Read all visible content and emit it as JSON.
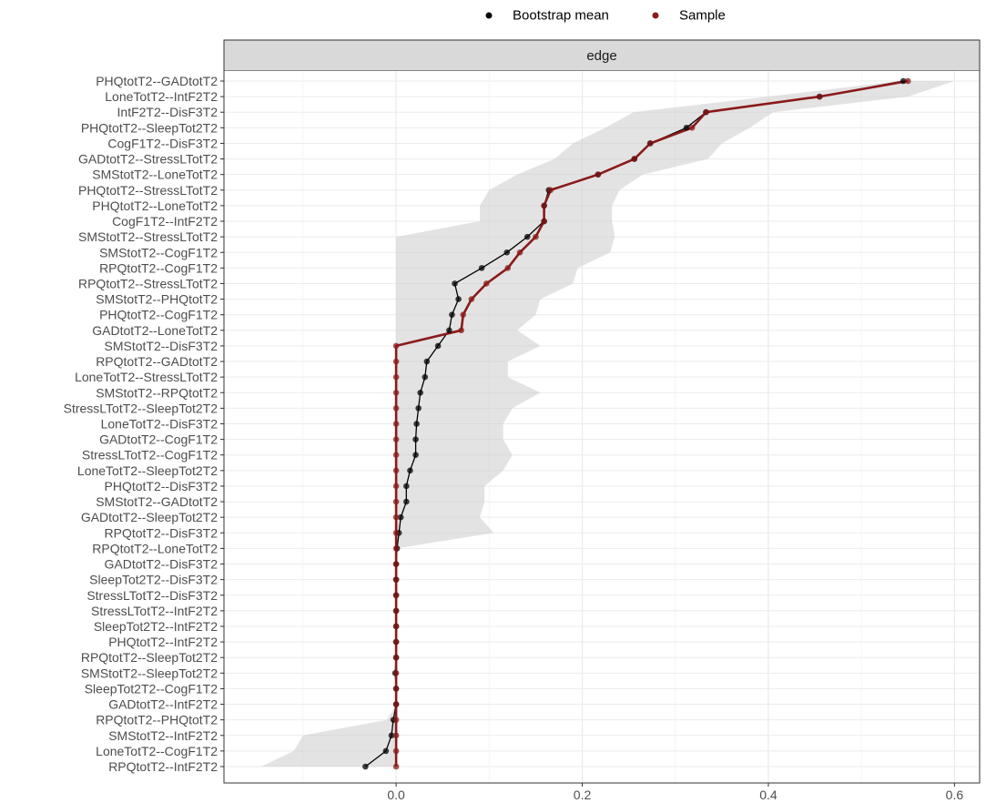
{
  "chart_data": {
    "type": "line",
    "orientation": "horizontal",
    "facet_label": "edge",
    "legend": {
      "placement": "top",
      "entries": [
        {
          "name": "Bootstrap mean",
          "color": "#000000"
        },
        {
          "name": "Sample",
          "color": "#8b1a1a"
        }
      ]
    },
    "categories": [
      "PHQtotT2--GADtotT2",
      "LoneTotT2--IntF2T2",
      "IntF2T2--DisF3T2",
      "PHQtotT2--SleepTot2T2",
      "CogF1T2--DisF3T2",
      "GADtotT2--StressLTotT2",
      "SMStotT2--LoneTotT2",
      "PHQtotT2--StressLTotT2",
      "PHQtotT2--LoneTotT2",
      "CogF1T2--IntF2T2",
      "SMStotT2--StressLTotT2",
      "SMStotT2--CogF1T2",
      "RPQtotT2--CogF1T2",
      "RPQtotT2--StressLTotT2",
      "SMStotT2--PHQtotT2",
      "PHQtotT2--CogF1T2",
      "GADtotT2--LoneTotT2",
      "SMStotT2--DisF3T2",
      "RPQtotT2--GADtotT2",
      "LoneTotT2--StressLTotT2",
      "SMStotT2--RPQtotT2",
      "StressLTotT2--SleepTot2T2",
      "LoneTotT2--DisF3T2",
      "GADtotT2--CogF1T2",
      "StressLTotT2--CogF1T2",
      "LoneTotT2--SleepTot2T2",
      "PHQtotT2--DisF3T2",
      "SMStotT2--GADtotT2",
      "GADtotT2--SleepTot2T2",
      "RPQtotT2--DisF3T2",
      "RPQtotT2--LoneTotT2",
      "GADtotT2--DisF3T2",
      "SleepTot2T2--DisF3T2",
      "StressLTotT2--DisF3T2",
      "StressLTotT2--IntF2T2",
      "SleepTot2T2--IntF2T2",
      "PHQtotT2--IntF2T2",
      "RPQtotT2--SleepTot2T2",
      "SMStotT2--SleepTot2T2",
      "SleepTot2T2--CogF1T2",
      "GADtotT2--IntF2T2",
      "RPQtotT2--PHQtotT2",
      "SMStotT2--IntF2T2",
      "LoneTotT2--CogF1T2",
      "RPQtotT2--IntF2T2"
    ],
    "series": [
      {
        "name": "Bootstrap mean",
        "color": "#000000",
        "values": [
          0.545,
          0.455,
          0.333,
          0.312,
          0.273,
          0.256,
          0.217,
          0.164,
          0.159,
          0.159,
          0.141,
          0.119,
          0.092,
          0.063,
          0.067,
          0.06,
          0.057,
          0.045,
          0.033,
          0.031,
          0.026,
          0.024,
          0.022,
          0.021,
          0.021,
          0.015,
          0.011,
          0.011,
          0.005,
          0.003,
          0.001,
          0.0,
          0.0,
          0.0,
          0.0,
          0.0,
          0.0,
          0.0,
          -0.001,
          0.0,
          0.0,
          -0.003,
          -0.005,
          -0.011,
          -0.033
        ]
      },
      {
        "name": "Sample",
        "color": "#8b1a1a",
        "values": [
          0.55,
          0.455,
          0.333,
          0.318,
          0.273,
          0.256,
          0.217,
          0.166,
          0.159,
          0.159,
          0.15,
          0.133,
          0.12,
          0.097,
          0.081,
          0.072,
          0.07,
          0.0,
          0.0,
          0.0,
          0.0,
          0.0,
          0.0,
          0.0,
          0.0,
          0.0,
          0.0,
          0.0,
          0.0,
          0.0,
          0.0,
          0.0,
          0.0,
          0.0,
          0.0,
          0.0,
          0.0,
          0.0,
          0.0,
          0.0,
          0.0,
          0.0,
          0.0,
          0.0,
          0.0
        ]
      }
    ],
    "ci_lower": [
      0.54,
      0.4,
      0.255,
      0.225,
      0.19,
      0.17,
      0.13,
      0.1,
      0.09,
      0.09,
      0.0,
      0.0,
      0.0,
      0.0,
      0.0,
      0.0,
      0.0,
      0.0,
      0.0,
      0.0,
      0.0,
      0.0,
      0.0,
      0.0,
      0.0,
      0.0,
      0.0,
      0.0,
      0.0,
      0.0,
      0.0,
      0.0,
      0.0,
      0.0,
      0.0,
      0.0,
      0.0,
      0.0,
      0.0,
      0.0,
      0.0,
      -0.01,
      -0.1,
      -0.11,
      -0.145
    ],
    "ci_upper": [
      0.6,
      0.55,
      0.405,
      0.38,
      0.35,
      0.335,
      0.265,
      0.24,
      0.232,
      0.232,
      0.235,
      0.23,
      0.195,
      0.19,
      0.155,
      0.15,
      0.13,
      0.155,
      0.12,
      0.12,
      0.155,
      0.125,
      0.115,
      0.115,
      0.125,
      0.115,
      0.095,
      0.095,
      0.09,
      0.105,
      0.0,
      0.0,
      0.0,
      0.0,
      0.0,
      0.0,
      0.0,
      0.0,
      0.0,
      0.0,
      0.0,
      0.0,
      0.0,
      0.0,
      0.0
    ],
    "xlim": [
      -0.185,
      0.627
    ],
    "x_ticks": [
      0.0,
      0.2,
      0.4,
      0.6
    ],
    "x_tick_labels": [
      "0.0",
      "0.2",
      "0.4",
      "0.6"
    ],
    "grid": true
  }
}
